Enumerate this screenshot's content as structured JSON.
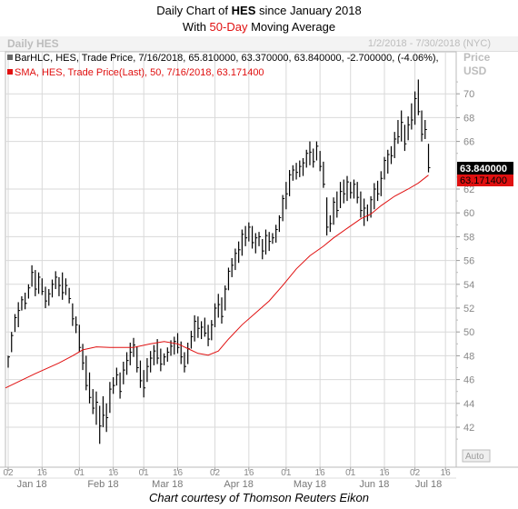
{
  "title": {
    "line1_pre": "Daily Chart of ",
    "ticker": "HES",
    "line1_post": " since January 2018",
    "line2_pre": "With ",
    "highlight": "50-Day",
    "line2_post": " Moving Average"
  },
  "header": {
    "left": "Daily HES",
    "right": "1/2/2018 - 7/30/2018 (NYC)"
  },
  "legend": {
    "bar": "BarHLC, HES, Trade Price,  7/16/2018, 65.810000, 63.370000, 63.840000, -2.700000, (-4.06%),",
    "sma": "SMA, HES, Trade Price(Last),  50,  7/16/2018, 63.171400"
  },
  "axis": {
    "price_label": "Price",
    "usd_label": "USD",
    "auto_label": "Auto",
    "y_ticks": [
      "70",
      "68",
      "66",
      "62",
      "60",
      "58",
      "56",
      "54",
      "52",
      "50",
      "48",
      "46",
      "44",
      "42"
    ],
    "x_day_ticks": [
      "02",
      "16",
      "01",
      "16",
      "01",
      "16",
      "02",
      "16",
      "01",
      "16",
      "01",
      "16",
      "02",
      "16"
    ],
    "x_month_ticks": [
      "Jan 18",
      "Feb 18",
      "Mar 18",
      "Apr 18",
      "May 18",
      "Jun 18",
      "Jul 18"
    ],
    "last_price_label": "63.840000",
    "sma_value_label": "63.171400"
  },
  "caption": "Chart courtesy of Thomson Reuters Eikon",
  "colors": {
    "bars": "#000000",
    "sma": "#e01010",
    "grid": "#d9d9d9",
    "header_text": "#bdbdbd"
  },
  "chart_data": {
    "type": "line",
    "ylim": [
      40.5,
      72
    ],
    "grid": true,
    "series": [
      {
        "kind": "ohlc_bars",
        "points": [
          [
            48.0,
            47.0,
            47.9
          ],
          [
            50.0,
            48.3,
            49.7
          ],
          [
            51.5,
            50.0,
            51.2
          ],
          [
            52.5,
            50.4,
            51.8
          ],
          [
            53.0,
            51.8,
            52.7
          ],
          [
            53.3,
            51.9,
            52.4
          ],
          [
            54.0,
            52.8,
            53.7
          ],
          [
            55.6,
            53.8,
            55.0
          ],
          [
            55.2,
            53.0,
            53.6
          ],
          [
            55.0,
            53.2,
            54.6
          ],
          [
            54.5,
            53.1,
            53.4
          ],
          [
            53.8,
            52.0,
            52.6
          ],
          [
            53.6,
            52.2,
            53.2
          ],
          [
            54.4,
            52.9,
            54.0
          ],
          [
            55.1,
            53.6,
            54.6
          ],
          [
            54.6,
            53.0,
            53.9
          ],
          [
            55.0,
            52.7,
            53.3
          ],
          [
            54.5,
            53.1,
            53.9
          ],
          [
            53.7,
            52.4,
            52.8
          ],
          [
            52.4,
            50.5,
            51.1
          ],
          [
            51.3,
            49.9,
            50.6
          ],
          [
            50.6,
            48.3,
            48.7
          ],
          [
            49.0,
            46.8,
            47.4
          ],
          [
            48.0,
            45.1,
            45.5
          ],
          [
            46.6,
            44.0,
            44.5
          ],
          [
            45.2,
            43.1,
            43.6
          ],
          [
            45.0,
            42.2,
            44.1
          ],
          [
            43.8,
            40.6,
            42.1
          ],
          [
            44.6,
            42.0,
            43.0
          ],
          [
            44.0,
            41.6,
            42.8
          ],
          [
            45.8,
            43.2,
            45.2
          ],
          [
            46.2,
            44.8,
            45.5
          ],
          [
            47.0,
            45.5,
            46.4
          ],
          [
            46.6,
            44.4,
            45.0
          ],
          [
            47.5,
            45.6,
            46.8
          ],
          [
            48.3,
            46.4,
            47.6
          ],
          [
            49.1,
            47.2,
            48.3
          ],
          [
            49.5,
            47.9,
            48.9
          ],
          [
            48.8,
            46.6,
            47.0
          ],
          [
            47.6,
            45.3,
            45.9
          ],
          [
            46.8,
            44.5,
            45.3
          ],
          [
            47.8,
            45.8,
            47.1
          ],
          [
            48.4,
            46.6,
            47.8
          ],
          [
            48.9,
            47.2,
            48.4
          ],
          [
            49.4,
            47.3,
            47.8
          ],
          [
            48.6,
            46.7,
            47.3
          ],
          [
            48.2,
            47.2,
            47.9
          ],
          [
            48.7,
            47.5,
            48.3
          ],
          [
            49.3,
            48.0,
            48.8
          ],
          [
            49.6,
            48.1,
            49.2
          ],
          [
            49.9,
            48.2,
            48.7
          ],
          [
            49.2,
            47.3,
            47.9
          ],
          [
            48.3,
            46.6,
            47.1
          ],
          [
            49.1,
            47.3,
            48.6
          ],
          [
            50.1,
            48.6,
            49.6
          ],
          [
            51.4,
            49.2,
            50.9
          ],
          [
            51.3,
            49.5,
            50.3
          ],
          [
            50.9,
            49.4,
            50.4
          ],
          [
            51.2,
            49.6,
            49.9
          ],
          [
            50.6,
            48.8,
            49.4
          ],
          [
            51.0,
            49.3,
            50.6
          ],
          [
            52.4,
            50.4,
            52.0
          ],
          [
            53.2,
            51.2,
            52.3
          ],
          [
            52.9,
            50.7,
            51.3
          ],
          [
            53.9,
            51.8,
            53.6
          ],
          [
            55.4,
            53.5,
            55.1
          ],
          [
            56.2,
            54.6,
            55.6
          ],
          [
            57.0,
            55.2,
            56.6
          ],
          [
            57.6,
            55.8,
            56.9
          ],
          [
            58.6,
            56.4,
            58.2
          ],
          [
            58.9,
            57.2,
            57.9
          ],
          [
            59.2,
            57.6,
            58.8
          ],
          [
            58.9,
            57.0,
            57.5
          ],
          [
            58.3,
            56.6,
            57.9
          ],
          [
            58.4,
            57.2,
            58.0
          ],
          [
            57.8,
            56.1,
            56.8
          ],
          [
            58.6,
            56.5,
            58.1
          ],
          [
            58.4,
            56.8,
            57.6
          ],
          [
            58.3,
            57.4,
            57.9
          ],
          [
            59.0,
            57.5,
            58.6
          ],
          [
            59.8,
            58.4,
            59.6
          ],
          [
            61.5,
            59.3,
            61.2
          ],
          [
            62.6,
            60.3,
            61.6
          ],
          [
            63.6,
            61.4,
            63.2
          ],
          [
            64.0,
            62.7,
            63.6
          ],
          [
            64.2,
            62.8,
            63.4
          ],
          [
            64.4,
            63.0,
            63.9
          ],
          [
            64.6,
            63.1,
            64.2
          ],
          [
            65.3,
            63.8,
            65.0
          ],
          [
            66.0,
            64.0,
            65.1
          ],
          [
            65.4,
            63.8,
            64.3
          ],
          [
            66.0,
            64.4,
            65.6
          ],
          [
            65.2,
            63.5,
            63.9
          ],
          [
            64.3,
            62.1,
            62.4
          ],
          [
            61.3,
            58.1,
            58.8
          ],
          [
            59.8,
            58.4,
            59.1
          ],
          [
            61.3,
            59.0,
            60.9
          ],
          [
            61.8,
            59.6,
            60.2
          ],
          [
            62.6,
            60.4,
            61.8
          ],
          [
            62.8,
            60.8,
            61.6
          ],
          [
            63.1,
            61.0,
            62.6
          ],
          [
            62.6,
            61.2,
            61.7
          ],
          [
            62.8,
            61.2,
            62.4
          ],
          [
            62.6,
            60.8,
            61.3
          ],
          [
            61.8,
            59.6,
            60.2
          ],
          [
            61.2,
            58.9,
            60.4
          ],
          [
            60.7,
            59.3,
            59.8
          ],
          [
            61.4,
            59.6,
            61.1
          ],
          [
            62.5,
            60.3,
            62.0
          ],
          [
            62.7,
            61.0,
            61.6
          ],
          [
            63.5,
            61.4,
            62.9
          ],
          [
            64.7,
            62.8,
            64.4
          ],
          [
            65.3,
            63.3,
            64.9
          ],
          [
            65.6,
            64.1,
            64.8
          ],
          [
            66.8,
            64.6,
            66.2
          ],
          [
            67.8,
            65.8,
            66.4
          ],
          [
            68.6,
            66.0,
            67.6
          ],
          [
            67.4,
            65.2,
            65.8
          ],
          [
            68.1,
            66.1,
            67.4
          ],
          [
            69.2,
            67.0,
            67.8
          ],
          [
            70.2,
            67.4,
            69.6
          ],
          [
            71.2,
            68.2,
            68.5
          ],
          [
            68.6,
            66.0,
            66.6
          ],
          [
            67.8,
            66.2,
            67.0
          ],
          [
            65.8,
            63.4,
            63.8
          ]
        ]
      },
      {
        "kind": "sma",
        "points": [
          [
            0,
            45.3
          ],
          [
            8,
            46.5
          ],
          [
            15,
            47.4
          ],
          [
            19,
            48.0
          ],
          [
            22,
            48.5
          ],
          [
            26,
            48.75
          ],
          [
            30,
            48.7
          ],
          [
            37,
            48.7
          ],
          [
            42,
            49.0
          ],
          [
            46,
            49.2
          ],
          [
            50,
            49.0
          ],
          [
            53,
            48.6
          ],
          [
            56,
            48.2
          ],
          [
            59,
            48.05
          ],
          [
            62,
            48.4
          ],
          [
            65,
            49.4
          ],
          [
            69,
            50.6
          ],
          [
            73,
            51.6
          ],
          [
            77,
            52.6
          ],
          [
            81,
            53.9
          ],
          [
            85,
            55.3
          ],
          [
            89,
            56.4
          ],
          [
            93,
            57.2
          ],
          [
            96,
            57.9
          ],
          [
            100,
            58.7
          ],
          [
            104,
            59.5
          ],
          [
            107,
            59.9
          ],
          [
            110,
            60.6
          ],
          [
            114,
            61.4
          ],
          [
            118,
            62.0
          ],
          [
            121,
            62.5
          ],
          [
            124,
            63.1714
          ]
        ]
      }
    ]
  }
}
